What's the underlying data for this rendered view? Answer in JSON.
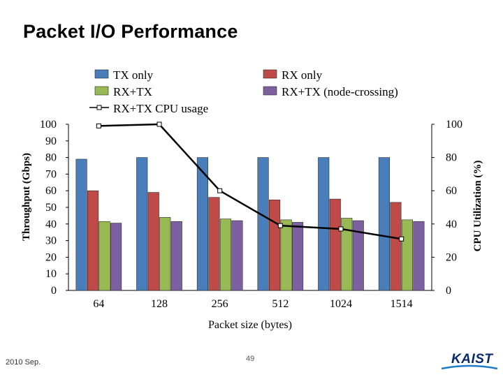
{
  "slide": {
    "title": "Packet I/O Performance",
    "date": "2010 Sep.",
    "page_number": "49",
    "logo_text": "KAIST"
  },
  "colors": {
    "tx_only": "#4a7ebb",
    "rx_only": "#be4b48",
    "rx_tx": "#98b954",
    "rx_tx_node": "#7d60a0",
    "cpu_line": "#000000"
  },
  "chart_data": {
    "type": "bar",
    "title": "",
    "categories": [
      "64",
      "128",
      "256",
      "512",
      "1024",
      "1514"
    ],
    "xlabel": "Packet size (bytes)",
    "ylabel": "Throughput (Gbps)",
    "ylim": [
      0,
      100
    ],
    "yticks": [
      0,
      10,
      20,
      30,
      40,
      50,
      60,
      70,
      80,
      90,
      100
    ],
    "y2label": "CPU Utilization (%)",
    "y2lim": [
      0,
      100
    ],
    "y2ticks": [
      0,
      20,
      40,
      60,
      80,
      100
    ],
    "series": [
      {
        "name": "TX only",
        "values": [
          79,
          80,
          80,
          80,
          80,
          80
        ]
      },
      {
        "name": "RX only",
        "values": [
          60,
          59,
          56,
          54.5,
          55,
          53
        ]
      },
      {
        "name": "RX+TX",
        "values": [
          41.5,
          44,
          43,
          42.5,
          43.5,
          42.5
        ]
      },
      {
        "name": "RX+TX (node-crossing)",
        "values": [
          40.5,
          41.5,
          42,
          41,
          42,
          41.5
        ]
      }
    ],
    "line_series": {
      "name": "RX+TX CPU usage",
      "axis": "right",
      "values": [
        99,
        100,
        60,
        39,
        37,
        31
      ]
    },
    "legend_position": "top"
  }
}
